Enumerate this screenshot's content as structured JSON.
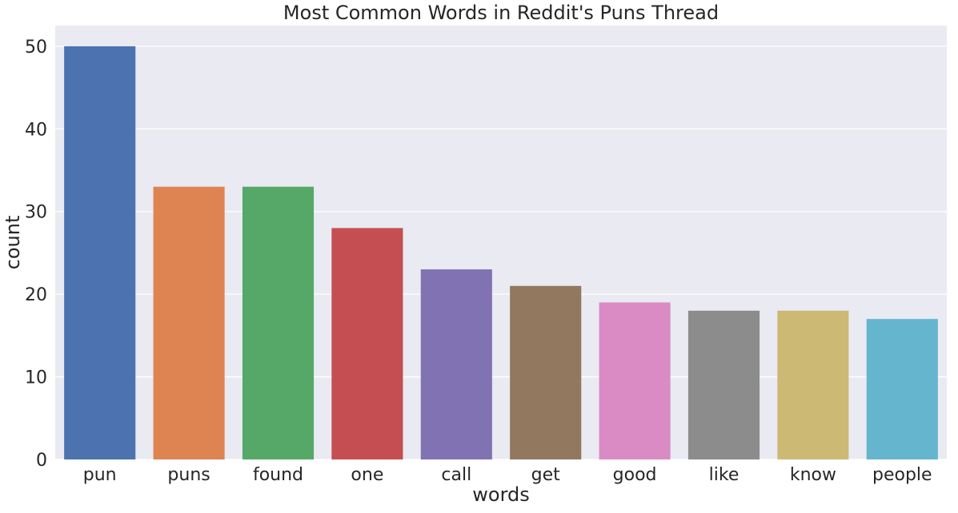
{
  "chart_data": {
    "type": "bar",
    "title": "Most Common Words in Reddit's Puns Thread",
    "xlabel": "words",
    "ylabel": "count",
    "categories": [
      "pun",
      "puns",
      "found",
      "one",
      "call",
      "get",
      "good",
      "like",
      "know",
      "people"
    ],
    "values": [
      50,
      33,
      33,
      28,
      23,
      21,
      19,
      18,
      18,
      17
    ],
    "colors": [
      "#4c72b0",
      "#dd8452",
      "#55a868",
      "#c44e52",
      "#8172b3",
      "#937860",
      "#da8bc3",
      "#8c8c8c",
      "#ccb974",
      "#64b5cd"
    ],
    "ylim": [
      0,
      52.5
    ],
    "yticks": [
      0,
      10,
      20,
      30,
      40,
      50
    ],
    "grid": true,
    "background": "#eaeaf2",
    "grid_color": "#ffffff"
  }
}
